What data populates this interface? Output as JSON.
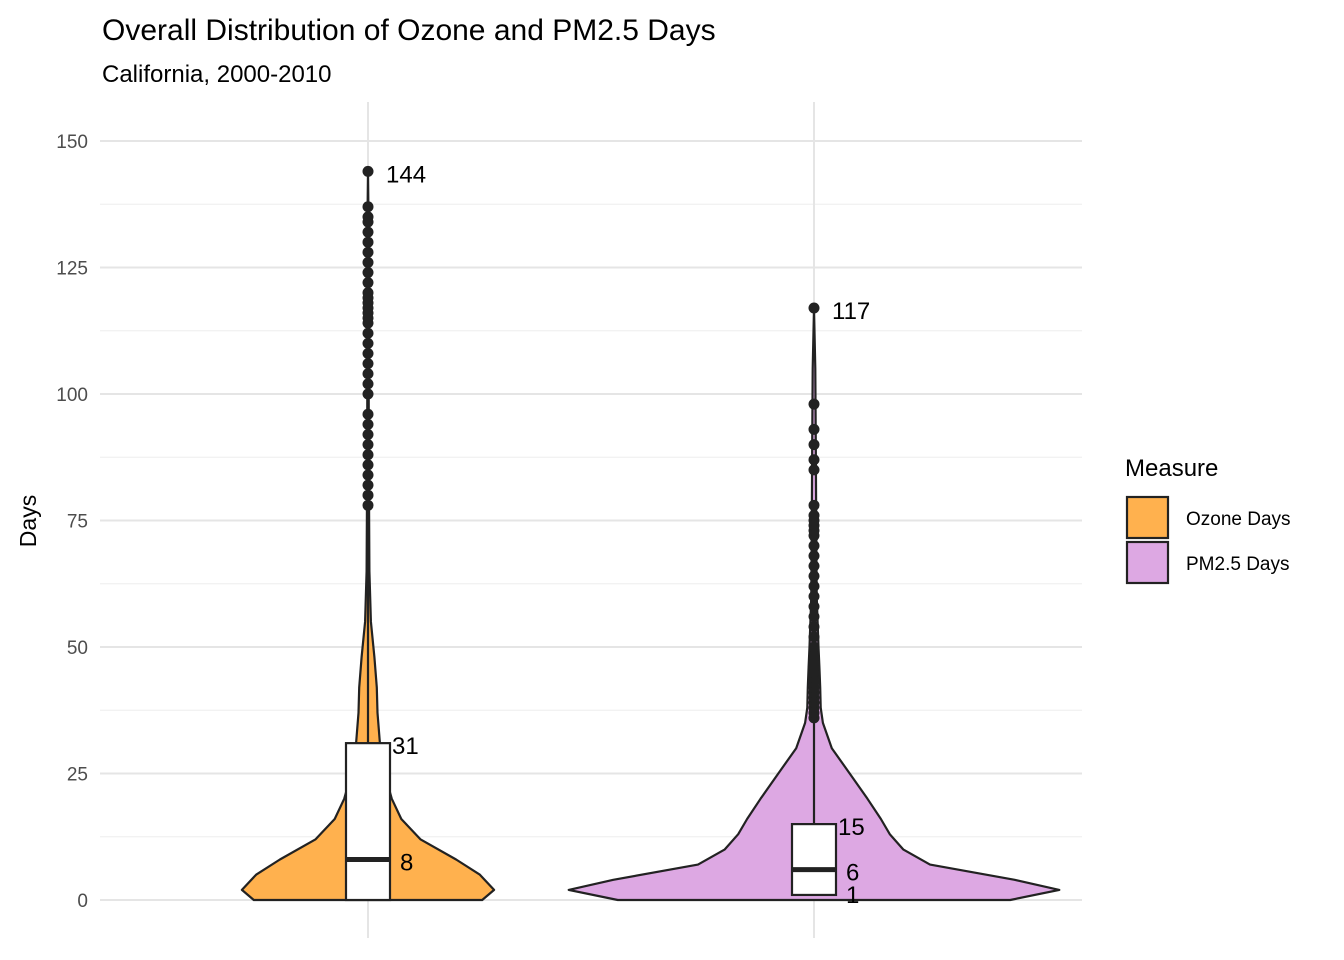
{
  "chart_data": {
    "type": "violin",
    "title": "Overall Distribution of Ozone and PM2.5 Days",
    "subtitle": "California, 2000-2010",
    "xlabel": "",
    "ylabel": "Days",
    "ylim": [
      0,
      150
    ],
    "yticks": [
      "0",
      "25",
      "50",
      "75",
      "100",
      "125",
      "150"
    ],
    "grid": true,
    "legend": {
      "title": "Measure",
      "position": "right",
      "entries": [
        "Ozone Days",
        "PM2.5 Days"
      ]
    },
    "series": [
      {
        "name": "Ozone Days",
        "color": "#FFB14E",
        "box": {
          "min": 0,
          "q1": 0,
          "median": 8,
          "q3": 31,
          "upper_whisker": 77,
          "max": 144
        },
        "annotations": {
          "max": "144",
          "q3": "31",
          "median": "8"
        },
        "density": [
          [
            0,
            0.48
          ],
          [
            2,
            0.53
          ],
          [
            5,
            0.47
          ],
          [
            8,
            0.37
          ],
          [
            12,
            0.22
          ],
          [
            16,
            0.14
          ],
          [
            20,
            0.1
          ],
          [
            25,
            0.07
          ],
          [
            31,
            0.05
          ],
          [
            37,
            0.04
          ],
          [
            42,
            0.037
          ],
          [
            48,
            0.027
          ],
          [
            55,
            0.012
          ],
          [
            65,
            0.006
          ],
          [
            80,
            0.004
          ],
          [
            100,
            0.003
          ],
          [
            120,
            0.003
          ],
          [
            135,
            0.002
          ],
          [
            144,
            0.0
          ]
        ],
        "outliers": [
          78,
          80,
          82,
          84,
          86,
          88,
          90,
          92,
          94,
          96,
          100,
          102,
          104,
          106,
          108,
          110,
          112,
          114,
          115,
          116,
          117,
          118,
          119,
          120,
          122,
          124,
          126,
          128,
          130,
          132,
          134,
          135,
          137,
          144
        ]
      },
      {
        "name": "PM2.5 Days",
        "color": "#DDA8E3",
        "box": {
          "min": 0,
          "q1": 1,
          "median": 6,
          "q3": 15,
          "upper_whisker": 36,
          "max": 117
        },
        "annotations": {
          "max": "117",
          "q3": "15",
          "median": "6",
          "q1": "1"
        },
        "density": [
          [
            0,
            0.44
          ],
          [
            2,
            0.55
          ],
          [
            4,
            0.45
          ],
          [
            7,
            0.26
          ],
          [
            10,
            0.2
          ],
          [
            13,
            0.17
          ],
          [
            16,
            0.15
          ],
          [
            20,
            0.12
          ],
          [
            25,
            0.08
          ],
          [
            30,
            0.04
          ],
          [
            35,
            0.02
          ],
          [
            38,
            0.015
          ],
          [
            42,
            0.014
          ],
          [
            46,
            0.012
          ],
          [
            50,
            0.01
          ],
          [
            60,
            0.006
          ],
          [
            75,
            0.005
          ],
          [
            90,
            0.004
          ],
          [
            105,
            0.003
          ],
          [
            117,
            0.0
          ]
        ],
        "outliers": [
          36,
          37,
          38,
          39,
          40,
          41,
          42,
          43,
          44,
          45,
          46,
          47,
          48,
          49,
          50,
          52,
          54,
          56,
          58,
          60,
          62,
          64,
          66,
          68,
          70,
          72,
          73,
          74,
          75,
          76,
          78,
          85,
          87,
          90,
          93,
          98,
          117
        ]
      }
    ]
  }
}
